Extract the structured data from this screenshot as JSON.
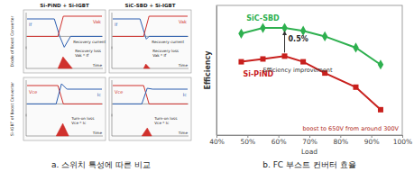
{
  "chart_data": {
    "type": "line",
    "xlabel": "Load",
    "ylabel": "Efficiency",
    "x": [
      48,
      55,
      62,
      68,
      75,
      85,
      93
    ],
    "series": [
      {
        "name": "SiC-SBD",
        "color": "#2eb04f",
        "marker": "diamond",
        "values": [
          97.3,
          97.4,
          97.4,
          97.35,
          97.25,
          97.05,
          96.75
        ]
      },
      {
        "name": "Si-PiND",
        "color": "#c8201d",
        "marker": "square",
        "values": [
          96.8,
          96.85,
          96.9,
          96.8,
          96.6,
          96.35,
          95.95
        ]
      }
    ],
    "xlim": [
      40,
      100
    ],
    "xticks": [
      {
        "value": 40,
        "label": "40%"
      },
      {
        "value": 50,
        "label": "50%"
      },
      {
        "value": 60,
        "label": "60%"
      },
      {
        "value": 70,
        "label": "70%"
      },
      {
        "value": 80,
        "label": "80%"
      },
      {
        "value": 90,
        "label": "90%"
      },
      {
        "value": 100,
        "label": "100%"
      }
    ],
    "ylim": [
      95.5,
      97.8
    ],
    "tick_labels": "x",
    "grid": false,
    "annotations": [
      "0.5%",
      "Efficiency improvement",
      "boost to 650V from around 300V"
    ]
  },
  "figure_a": {
    "columns": [
      "Si-PiND + Si-IGBT",
      "SiC-SBD + Si-IGBT"
    ],
    "rows": [
      "Diode of Boost Converter",
      "Si-IGBT of Boost Converter"
    ],
    "diode_panel": {
      "current": "If",
      "voltage": "Vak",
      "recovery": "Recovery current",
      "loss": [
        "Recovery loss",
        "Vak * If"
      ],
      "time": "Time"
    },
    "igbt_panel": {
      "voltage": "Vce",
      "current": "Ic",
      "loss": [
        "Turn-on loss",
        "Vce * Ic"
      ],
      "time": "Time"
    }
  },
  "captions": [
    "a. 스위치 특성에 따른 비교",
    "b. FC 부스트 컨버터 효율"
  ]
}
